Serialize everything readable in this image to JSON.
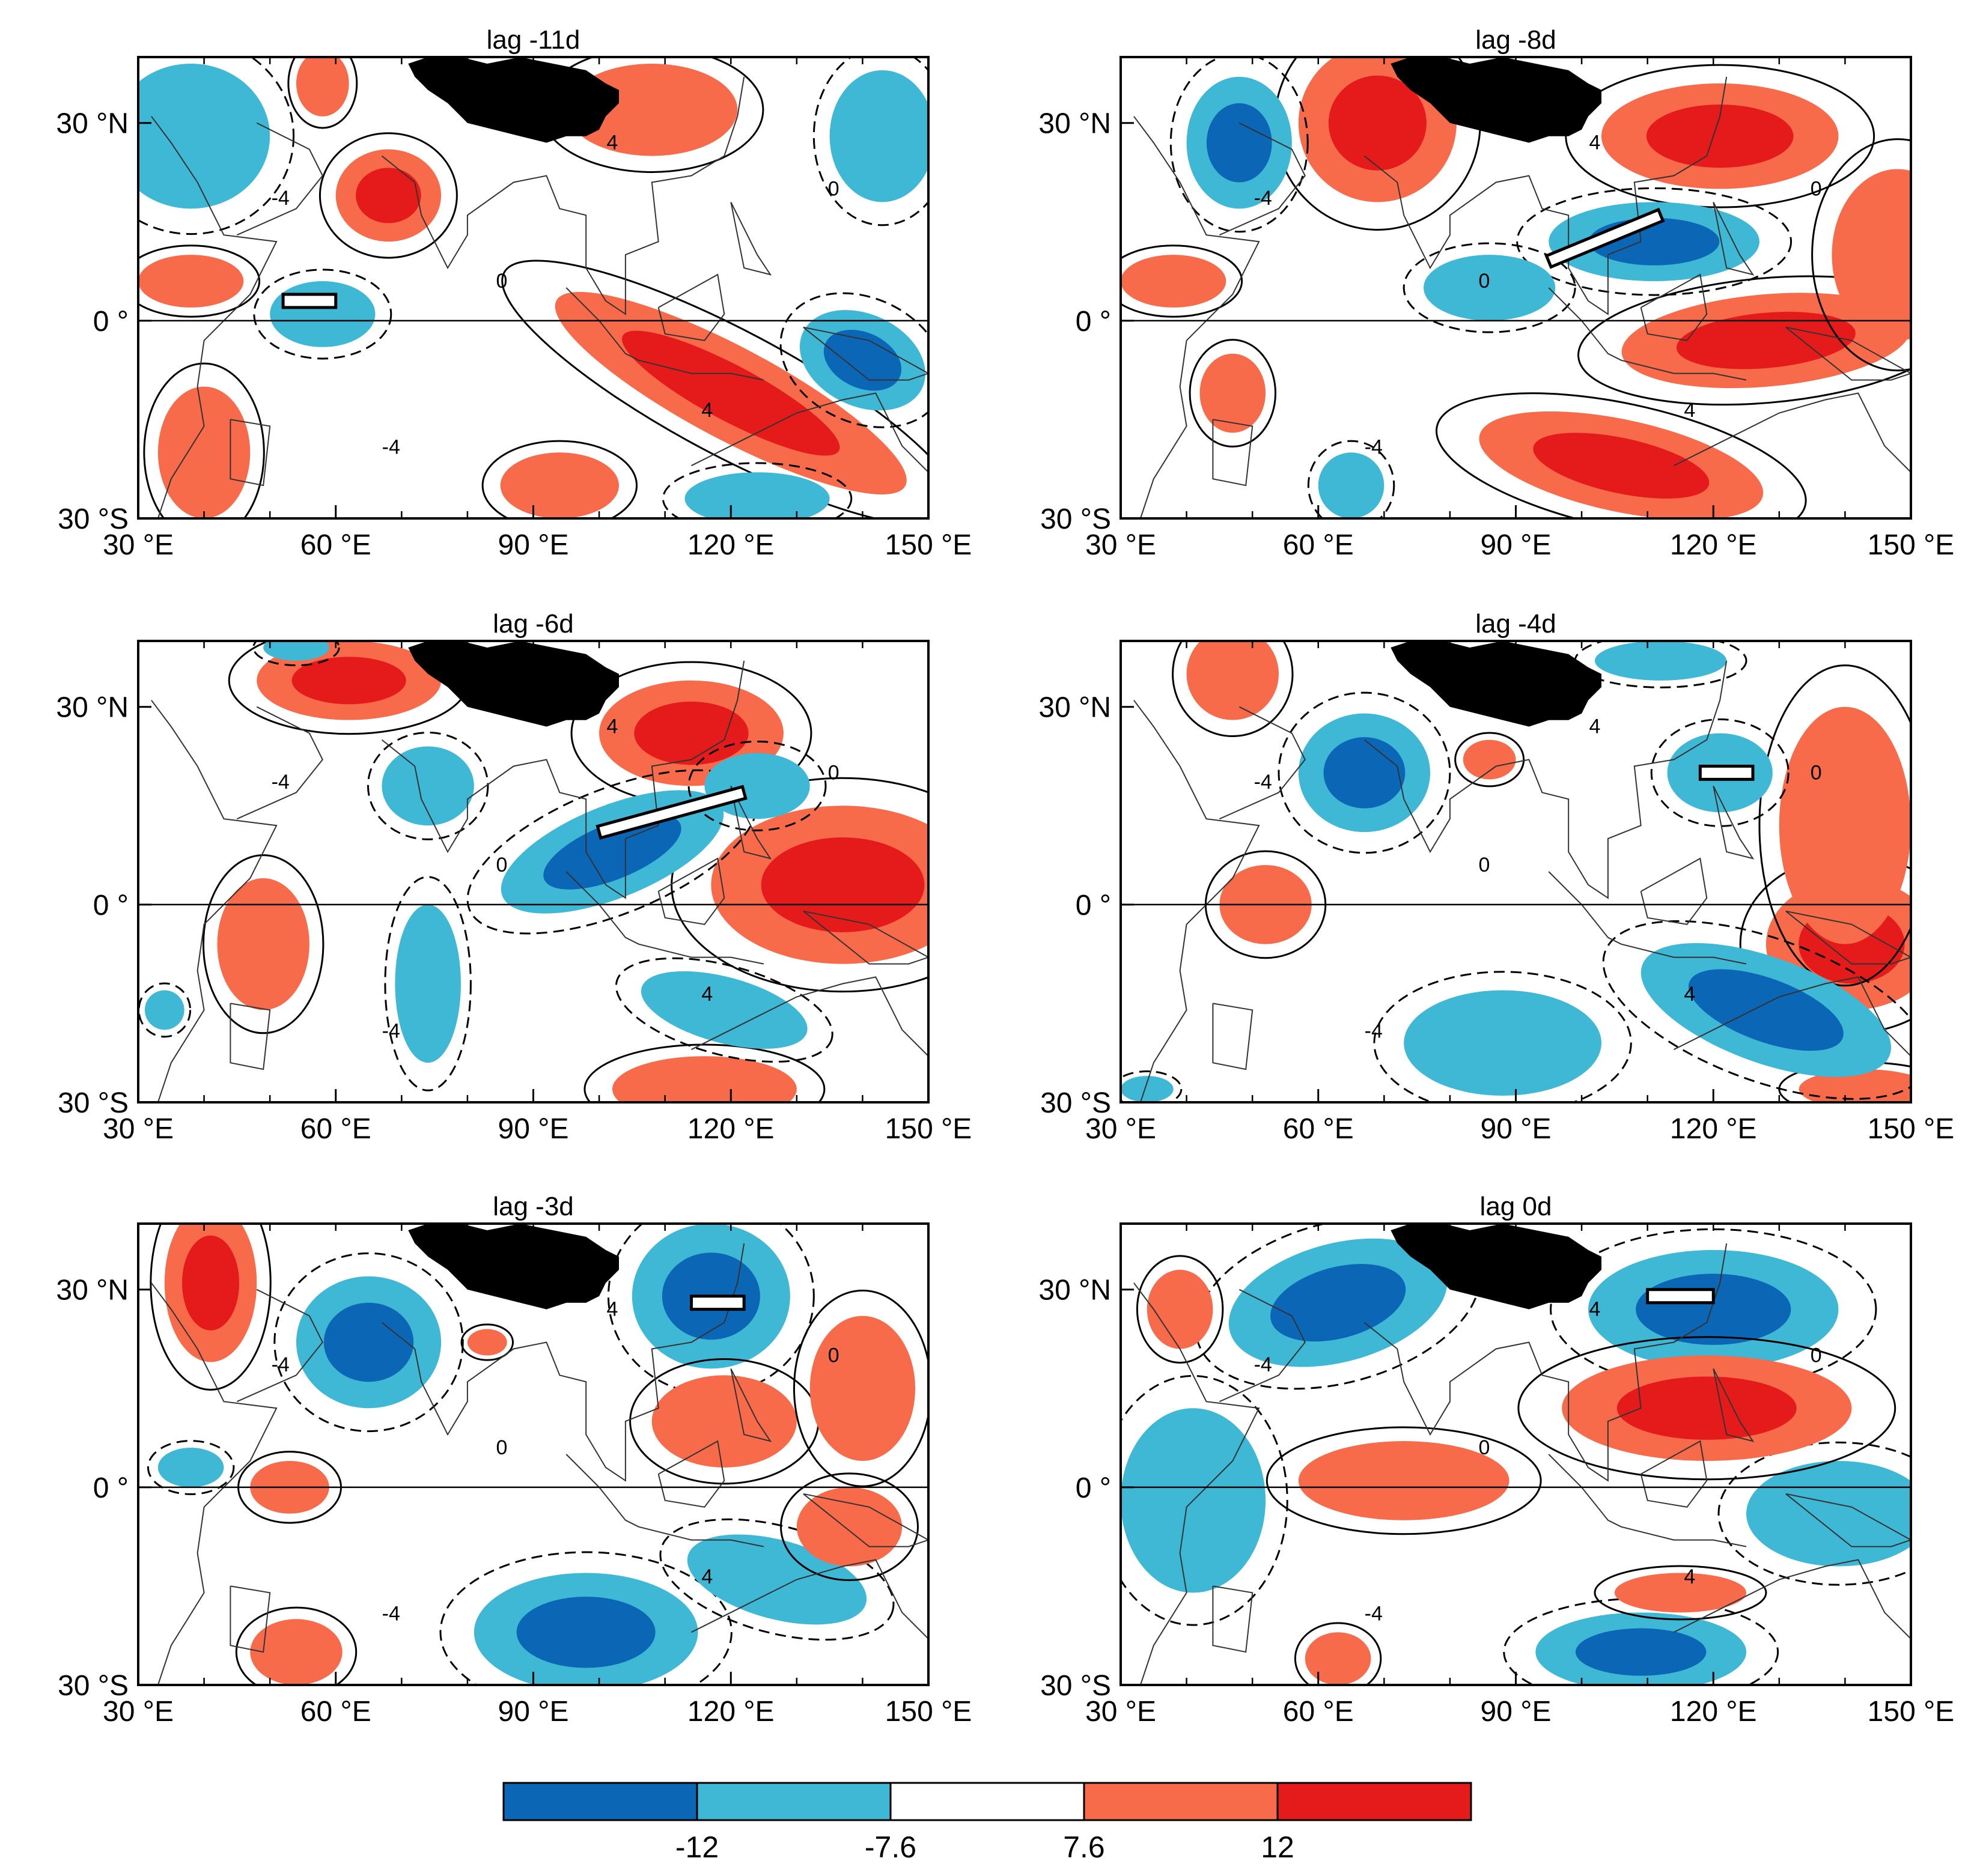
{
  "figure": {
    "colors": {
      "strong_neg": "#0b66b5",
      "weak_neg": "#3fb8d6",
      "neutral": "#ffffff",
      "weak_pos": "#f76a4a",
      "strong_pos": "#e51b1b",
      "land_mask": "#000000",
      "box_fill": "#ffffff"
    },
    "axes": {
      "lon_range_degE": [
        30,
        150
      ],
      "lat_range_deg": [
        -30,
        40
      ],
      "x_tick_labels": [
        "30 °E",
        "60 °E",
        "90 °E",
        "120 °E",
        "150 °E"
      ],
      "y_tick_labels": [
        "30 °N",
        "0 °",
        "30 °S"
      ],
      "equator_line": true
    },
    "contour_labels": [
      "-4",
      "0",
      "4"
    ],
    "colorbar": {
      "boundaries": [
        "-12",
        "-7.6",
        "7.6",
        "12"
      ],
      "levels": [
        "strong_neg",
        "weak_neg",
        "neutral",
        "weak_pos",
        "strong_pos"
      ]
    }
  },
  "chart_data": [
    {
      "type": "contour-map",
      "title": "lag -11d",
      "box_region": {
        "lon": [
          52,
          60
        ],
        "lat": [
          2,
          4
        ]
      },
      "anomalies": [
        {
          "sign": "+",
          "strength": 2,
          "lon": 68,
          "lat": 19,
          "rx": 8,
          "ry": 7
        },
        {
          "sign": "+",
          "strength": 1,
          "lon": 58,
          "lat": 36,
          "rx": 4,
          "ry": 5
        },
        {
          "sign": "+",
          "strength": 2,
          "lon": 120,
          "lat": -11,
          "rx": 30,
          "ry": 7,
          "rot": 28
        },
        {
          "sign": "+",
          "strength": 1,
          "lon": 108,
          "lat": 32,
          "rx": 13,
          "ry": 7
        },
        {
          "sign": "+",
          "strength": 1,
          "lon": 38,
          "lat": 6,
          "rx": 8,
          "ry": 4
        },
        {
          "sign": "+",
          "strength": 1,
          "lon": 40,
          "lat": -20,
          "rx": 7,
          "ry": 10
        },
        {
          "sign": "+",
          "strength": 1,
          "lon": 94,
          "lat": -25,
          "rx": 9,
          "ry": 5
        },
        {
          "sign": "-",
          "strength": 1,
          "lon": 38,
          "lat": 28,
          "rx": 12,
          "ry": 11
        },
        {
          "sign": "-",
          "strength": 1,
          "lon": 58,
          "lat": 1,
          "rx": 8,
          "ry": 5
        },
        {
          "sign": "-",
          "strength": 2,
          "lon": 140,
          "lat": -6,
          "rx": 10,
          "ry": 7,
          "rot": 25
        },
        {
          "sign": "-",
          "strength": 1,
          "lon": 143,
          "lat": 28,
          "rx": 8,
          "ry": 10
        },
        {
          "sign": "-",
          "strength": 1,
          "lon": 124,
          "lat": -27,
          "rx": 11,
          "ry": 4
        }
      ]
    },
    {
      "type": "contour-map",
      "title": "lag -8d",
      "box_region": {
        "lon": [
          95,
          112
        ],
        "lat": [
          9,
          16
        ]
      },
      "anomalies": [
        {
          "sign": "+",
          "strength": 2,
          "lon": 69,
          "lat": 30,
          "rx": 12,
          "ry": 12
        },
        {
          "sign": "+",
          "strength": 2,
          "lon": 121,
          "lat": 28,
          "rx": 18,
          "ry": 8
        },
        {
          "sign": "+",
          "strength": 2,
          "lon": 128,
          "lat": -3,
          "rx": 22,
          "ry": 7,
          "rot": -5
        },
        {
          "sign": "+",
          "strength": 1,
          "lon": 148,
          "lat": 10,
          "rx": 10,
          "ry": 13
        },
        {
          "sign": "+",
          "strength": 1,
          "lon": 38,
          "lat": 6,
          "rx": 8,
          "ry": 4
        },
        {
          "sign": "+",
          "strength": 1,
          "lon": 47,
          "lat": -11,
          "rx": 5,
          "ry": 6
        },
        {
          "sign": "+",
          "strength": 2,
          "lon": 106,
          "lat": -22,
          "rx": 22,
          "ry": 7,
          "rot": 12
        },
        {
          "sign": "-",
          "strength": 2,
          "lon": 48,
          "lat": 27,
          "rx": 8,
          "ry": 10
        },
        {
          "sign": "-",
          "strength": 2,
          "lon": 111,
          "lat": 12,
          "rx": 16,
          "ry": 6
        },
        {
          "sign": "-",
          "strength": 1,
          "lon": 86,
          "lat": 5,
          "rx": 10,
          "ry": 5
        },
        {
          "sign": "-",
          "strength": 1,
          "lon": 65,
          "lat": -25,
          "rx": 5,
          "ry": 5
        }
      ]
    },
    {
      "type": "contour-map",
      "title": "lag -6d",
      "box_region": {
        "lon": [
          100,
          122
        ],
        "lat": [
          11,
          17
        ]
      },
      "anomalies": [
        {
          "sign": "+",
          "strength": 2,
          "lon": 114,
          "lat": 26,
          "rx": 14,
          "ry": 8
        },
        {
          "sign": "+",
          "strength": 2,
          "lon": 62,
          "lat": 34,
          "rx": 14,
          "ry": 6
        },
        {
          "sign": "+",
          "strength": 2,
          "lon": 137,
          "lat": 3,
          "rx": 20,
          "ry": 12
        },
        {
          "sign": "+",
          "strength": 1,
          "lon": 49,
          "lat": -6,
          "rx": 7,
          "ry": 10
        },
        {
          "sign": "+",
          "strength": 1,
          "lon": 116,
          "lat": -28,
          "rx": 14,
          "ry": 5
        },
        {
          "sign": "-",
          "strength": 2,
          "lon": 102,
          "lat": 8,
          "rx": 18,
          "ry": 7,
          "rot": -22
        },
        {
          "sign": "-",
          "strength": 1,
          "lon": 74,
          "lat": 18,
          "rx": 7,
          "ry": 6
        },
        {
          "sign": "-",
          "strength": 1,
          "lon": 74,
          "lat": -12,
          "rx": 5,
          "ry": 12
        },
        {
          "sign": "-",
          "strength": 1,
          "lon": 119,
          "lat": -16,
          "rx": 13,
          "ry": 5,
          "rot": 15
        },
        {
          "sign": "-",
          "strength": 1,
          "lon": 124,
          "lat": 18,
          "rx": 8,
          "ry": 5
        },
        {
          "sign": "-",
          "strength": 1,
          "lon": 34,
          "lat": -16,
          "rx": 3,
          "ry": 3
        },
        {
          "sign": "-",
          "strength": 1,
          "lon": 54,
          "lat": 39,
          "rx": 5,
          "ry": 2
        }
      ]
    },
    {
      "type": "contour-map",
      "title": "lag -4d",
      "box_region": {
        "lon": [
          118,
          126
        ],
        "lat": [
          19,
          21
        ]
      },
      "anomalies": [
        {
          "sign": "+",
          "strength": 2,
          "lon": 141,
          "lat": -6,
          "rx": 13,
          "ry": 10
        },
        {
          "sign": "+",
          "strength": 1,
          "lon": 140,
          "lat": 12,
          "rx": 10,
          "ry": 18
        },
        {
          "sign": "+",
          "strength": 1,
          "lon": 52,
          "lat": 0,
          "rx": 7,
          "ry": 6
        },
        {
          "sign": "+",
          "strength": 1,
          "lon": 47,
          "lat": 35,
          "rx": 7,
          "ry": 7
        },
        {
          "sign": "+",
          "strength": 1,
          "lon": 86,
          "lat": 22,
          "rx": 4,
          "ry": 3
        },
        {
          "sign": "+",
          "strength": 1,
          "lon": 143,
          "lat": -28,
          "rx": 10,
          "ry": 3
        },
        {
          "sign": "-",
          "strength": 2,
          "lon": 67,
          "lat": 20,
          "rx": 10,
          "ry": 9
        },
        {
          "sign": "-",
          "strength": 2,
          "lon": 128,
          "lat": -16,
          "rx": 20,
          "ry": 8,
          "rot": 20
        },
        {
          "sign": "-",
          "strength": 1,
          "lon": 88,
          "lat": -21,
          "rx": 15,
          "ry": 8
        },
        {
          "sign": "-",
          "strength": 1,
          "lon": 121,
          "lat": 20,
          "rx": 8,
          "ry": 6
        },
        {
          "sign": "-",
          "strength": 1,
          "lon": 112,
          "lat": 37,
          "rx": 10,
          "ry": 3
        },
        {
          "sign": "-",
          "strength": 1,
          "lon": 34,
          "lat": -28,
          "rx": 4,
          "ry": 2
        }
      ]
    },
    {
      "type": "contour-map",
      "title": "lag -3d",
      "box_region": {
        "lon": [
          114,
          122
        ],
        "lat": [
          27,
          29
        ]
      },
      "anomalies": [
        {
          "sign": "-",
          "strength": 2,
          "lon": 65,
          "lat": 22,
          "rx": 11,
          "ry": 10
        },
        {
          "sign": "-",
          "strength": 2,
          "lon": 117,
          "lat": 29,
          "rx": 12,
          "ry": 11
        },
        {
          "sign": "-",
          "strength": 2,
          "lon": 98,
          "lat": -22,
          "rx": 17,
          "ry": 9
        },
        {
          "sign": "-",
          "strength": 1,
          "lon": 127,
          "lat": -14,
          "rx": 14,
          "ry": 6,
          "rot": 15
        },
        {
          "sign": "-",
          "strength": 1,
          "lon": 38,
          "lat": 3,
          "rx": 5,
          "ry": 3
        },
        {
          "sign": "+",
          "strength": 2,
          "lon": 41,
          "lat": 31,
          "rx": 7,
          "ry": 12
        },
        {
          "sign": "+",
          "strength": 1,
          "lon": 119,
          "lat": 10,
          "rx": 11,
          "ry": 7
        },
        {
          "sign": "+",
          "strength": 1,
          "lon": 140,
          "lat": 15,
          "rx": 8,
          "ry": 11
        },
        {
          "sign": "+",
          "strength": 1,
          "lon": 138,
          "lat": -6,
          "rx": 8,
          "ry": 6
        },
        {
          "sign": "+",
          "strength": 1,
          "lon": 53,
          "lat": 0,
          "rx": 6,
          "ry": 4
        },
        {
          "sign": "+",
          "strength": 1,
          "lon": 54,
          "lat": -25,
          "rx": 7,
          "ry": 5
        },
        {
          "sign": "+",
          "strength": 1,
          "lon": 83,
          "lat": 22,
          "rx": 3,
          "ry": 2
        }
      ]
    },
    {
      "type": "contour-map",
      "title": "lag 0d",
      "box_region": {
        "lon": [
          110,
          120
        ],
        "lat": [
          28,
          30
        ]
      },
      "anomalies": [
        {
          "sign": "-",
          "strength": 2,
          "lon": 63,
          "lat": 28,
          "rx": 17,
          "ry": 9,
          "rot": -15
        },
        {
          "sign": "-",
          "strength": 2,
          "lon": 120,
          "lat": 27,
          "rx": 19,
          "ry": 9
        },
        {
          "sign": "-",
          "strength": 1,
          "lon": 41,
          "lat": -2,
          "rx": 11,
          "ry": 14
        },
        {
          "sign": "-",
          "strength": 1,
          "lon": 139,
          "lat": -4,
          "rx": 14,
          "ry": 8
        },
        {
          "sign": "-",
          "strength": 2,
          "lon": 109,
          "lat": -25,
          "rx": 16,
          "ry": 6
        },
        {
          "sign": "+",
          "strength": 2,
          "lon": 119,
          "lat": 12,
          "rx": 22,
          "ry": 8
        },
        {
          "sign": "+",
          "strength": 1,
          "lon": 73,
          "lat": 1,
          "rx": 16,
          "ry": 6
        },
        {
          "sign": "+",
          "strength": 1,
          "lon": 115,
          "lat": -16,
          "rx": 10,
          "ry": 3
        },
        {
          "sign": "+",
          "strength": 1,
          "lon": 39,
          "lat": 27,
          "rx": 5,
          "ry": 6
        },
        {
          "sign": "+",
          "strength": 1,
          "lon": 63,
          "lat": -26,
          "rx": 5,
          "ry": 4
        }
      ]
    }
  ]
}
